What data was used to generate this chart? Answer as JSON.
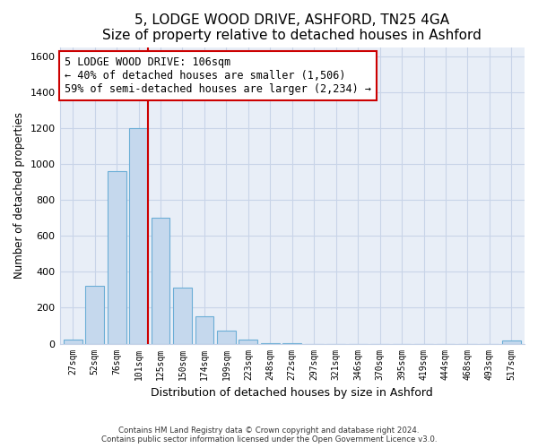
{
  "title": "5, LODGE WOOD DRIVE, ASHFORD, TN25 4GA",
  "subtitle": "Size of property relative to detached houses in Ashford",
  "xlabel": "Distribution of detached houses by size in Ashford",
  "ylabel": "Number of detached properties",
  "bar_labels": [
    "27sqm",
    "52sqm",
    "76sqm",
    "101sqm",
    "125sqm",
    "150sqm",
    "174sqm",
    "199sqm",
    "223sqm",
    "248sqm",
    "272sqm",
    "297sqm",
    "321sqm",
    "346sqm",
    "370sqm",
    "395sqm",
    "419sqm",
    "444sqm",
    "468sqm",
    "493sqm",
    "517sqm"
  ],
  "bar_values": [
    25,
    320,
    960,
    1200,
    700,
    310,
    150,
    75,
    25,
    5,
    5,
    0,
    0,
    0,
    0,
    0,
    0,
    0,
    0,
    0,
    20
  ],
  "bar_color": "#c5d8ed",
  "bar_edge_color": "#6baed6",
  "vline_x_index": 3,
  "vline_color": "#cc0000",
  "ylim": [
    0,
    1650
  ],
  "yticks": [
    0,
    200,
    400,
    600,
    800,
    1000,
    1200,
    1400,
    1600
  ],
  "annotation_title": "5 LODGE WOOD DRIVE: 106sqm",
  "annotation_line1": "← 40% of detached houses are smaller (1,506)",
  "annotation_line2": "59% of semi-detached houses are larger (2,234) →",
  "annotation_box_color": "#ffffff",
  "annotation_box_edge": "#cc0000",
  "footer_line1": "Contains HM Land Registry data © Crown copyright and database right 2024.",
  "footer_line2": "Contains public sector information licensed under the Open Government Licence v3.0.",
  "background_color": "#ffffff",
  "plot_bg_color": "#e8eef7",
  "grid_color": "#c8d4e8"
}
